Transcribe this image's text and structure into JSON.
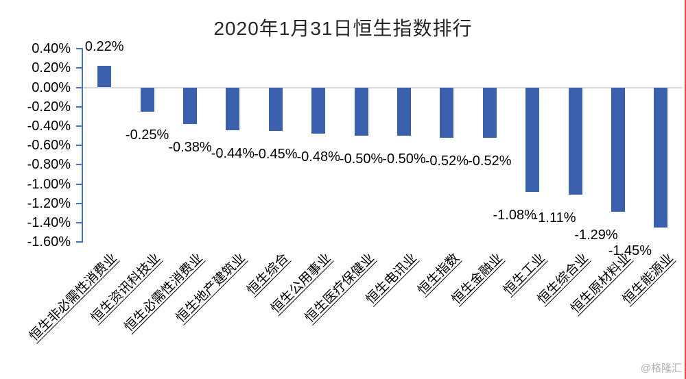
{
  "title": "2020年1月31日恒生指数排行",
  "watermark": "@格隆汇",
  "chart_data": {
    "type": "bar",
    "title": "2020年1月31日恒生指数排行",
    "categories": [
      "恒生非必需性消费业",
      "恒生资讯科技业",
      "恒生必需性消费业",
      "恒生地产建筑业",
      "恒生综合",
      "恒生公用事业",
      "恒生医疗保健业",
      "恒生电讯业",
      "恒生指数",
      "恒生金融业",
      "恒生工业",
      "恒生综合业",
      "恒生原材料业",
      "恒生能源业"
    ],
    "values": [
      0.22,
      -0.25,
      -0.38,
      -0.44,
      -0.45,
      -0.48,
      -0.5,
      -0.5,
      -0.52,
      -0.52,
      -1.08,
      -1.11,
      -1.29,
      -1.45
    ],
    "value_labels": [
      "0.22%",
      "-0.25%",
      "-0.38%",
      "-0.44%",
      "-0.45%",
      "-0.48%",
      "-0.50%",
      "-0.50%",
      "-0.52%",
      "-0.52%",
      "-1.08%",
      "-1.11%",
      "-1.29%",
      "-1.45%"
    ],
    "unit": "%",
    "xlabel": "",
    "ylabel": "",
    "y_ticks": [
      "0.40%",
      "0.20%",
      "0.00%",
      "-0.20%",
      "-0.40%",
      "-0.60%",
      "-0.80%",
      "-1.00%",
      "-1.20%",
      "-1.40%",
      "-1.60%"
    ],
    "ylim": [
      -1.6,
      0.4
    ],
    "grid": "zero-line-only",
    "legend": "none",
    "data_labels": "outside-end",
    "category_label_rotation_deg": 45,
    "bar_color": "#3b60ae",
    "axis_color": "#4472c4",
    "zero_line_color": "#d9d9d9",
    "text_color": "#000000",
    "title_color": "#262626",
    "watermark_color": "#b3b3b3",
    "right_edge_accent_color": "#ed4343"
  }
}
